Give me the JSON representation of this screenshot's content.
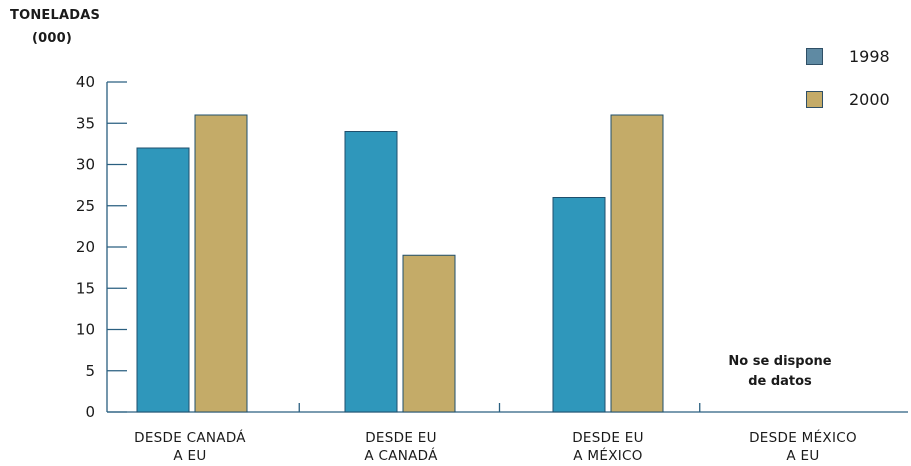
{
  "chart_data": {
    "type": "bar",
    "ylabel_line1": "TONELADAS",
    "ylabel_line2": "(000)",
    "categories": [
      {
        "line1": "DESDE CANADÁ",
        "line2": "A EU"
      },
      {
        "line1": "DESDE EU",
        "line2": "A CANADÁ"
      },
      {
        "line1": "DESDE EU",
        "line2": "A MÉXICO"
      },
      {
        "line1": "DESDE MÉXICO",
        "line2": "A EU"
      }
    ],
    "series": [
      {
        "name": "1998",
        "values": [
          32,
          34,
          26,
          null
        ]
      },
      {
        "name": "2000",
        "values": [
          36,
          19,
          36,
          null
        ]
      }
    ],
    "ylim": [
      0,
      40
    ],
    "yticks": [
      0,
      5,
      10,
      15,
      20,
      25,
      30,
      35,
      40
    ],
    "grid": false,
    "legend_position": "top-right",
    "annotation": {
      "line1": "No se dispone",
      "line2": "de datos"
    }
  },
  "colors": {
    "series_1998": "#2f97bb",
    "series_2000": "#c4ab68",
    "legend_1998": "#5f8aa3",
    "legend_2000": "#c4ab68",
    "axis": "#2a5f80",
    "bar_border": "#1f4f6c"
  }
}
